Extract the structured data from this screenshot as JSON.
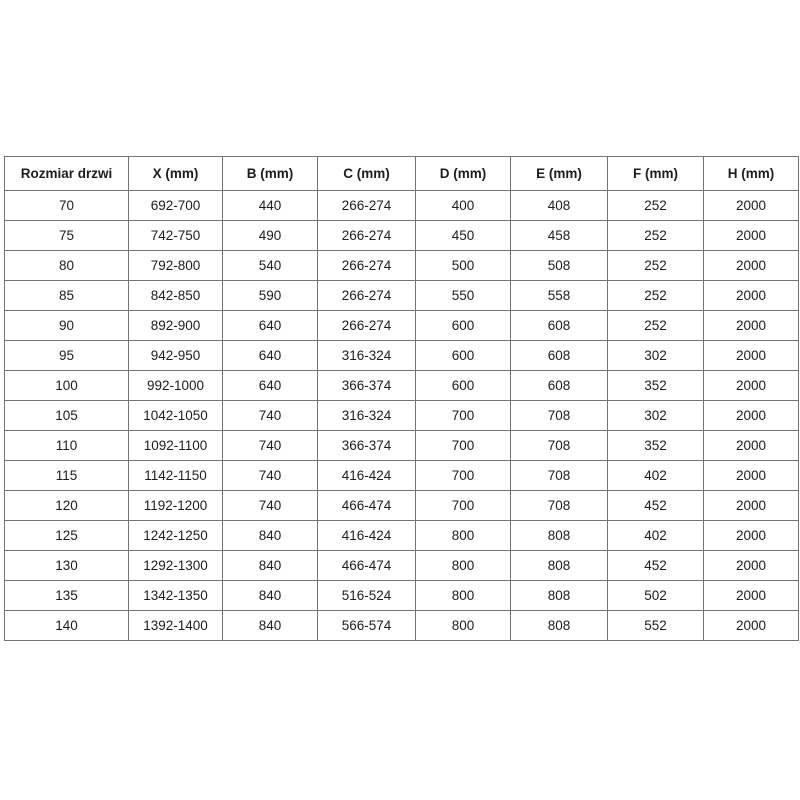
{
  "page": {
    "background": "#ffffff",
    "border_color": "#737373",
    "text_color": "#1d1d1d"
  },
  "table": {
    "title": "door-size-specification",
    "headers": [
      "Rozmiar drzwi",
      "X (mm)",
      "B (mm)",
      "C (mm)",
      "D (mm)",
      "E (mm)",
      "F (mm)",
      "H (mm)"
    ],
    "rows": [
      [
        "70",
        "692-700",
        "440",
        "266-274",
        "400",
        "408",
        "252",
        "2000"
      ],
      [
        "75",
        "742-750",
        "490",
        "266-274",
        "450",
        "458",
        "252",
        "2000"
      ],
      [
        "80",
        "792-800",
        "540",
        "266-274",
        "500",
        "508",
        "252",
        "2000"
      ],
      [
        "85",
        "842-850",
        "590",
        "266-274",
        "550",
        "558",
        "252",
        "2000"
      ],
      [
        "90",
        "892-900",
        "640",
        "266-274",
        "600",
        "608",
        "252",
        "2000"
      ],
      [
        "95",
        "942-950",
        "640",
        "316-324",
        "600",
        "608",
        "302",
        "2000"
      ],
      [
        "100",
        "992-1000",
        "640",
        "366-374",
        "600",
        "608",
        "352",
        "2000"
      ],
      [
        "105",
        "1042-1050",
        "740",
        "316-324",
        "700",
        "708",
        "302",
        "2000"
      ],
      [
        "110",
        "1092-1100",
        "740",
        "366-374",
        "700",
        "708",
        "352",
        "2000"
      ],
      [
        "115",
        "1142-1150",
        "740",
        "416-424",
        "700",
        "708",
        "402",
        "2000"
      ],
      [
        "120",
        "1192-1200",
        "740",
        "466-474",
        "700",
        "708",
        "452",
        "2000"
      ],
      [
        "125",
        "1242-1250",
        "840",
        "416-424",
        "800",
        "808",
        "402",
        "2000"
      ],
      [
        "130",
        "1292-1300",
        "840",
        "466-474",
        "800",
        "808",
        "452",
        "2000"
      ],
      [
        "135",
        "1342-1350",
        "840",
        "516-524",
        "800",
        "808",
        "502",
        "2000"
      ],
      [
        "140",
        "1392-1400",
        "840",
        "566-574",
        "800",
        "808",
        "552",
        "2000"
      ]
    ]
  }
}
